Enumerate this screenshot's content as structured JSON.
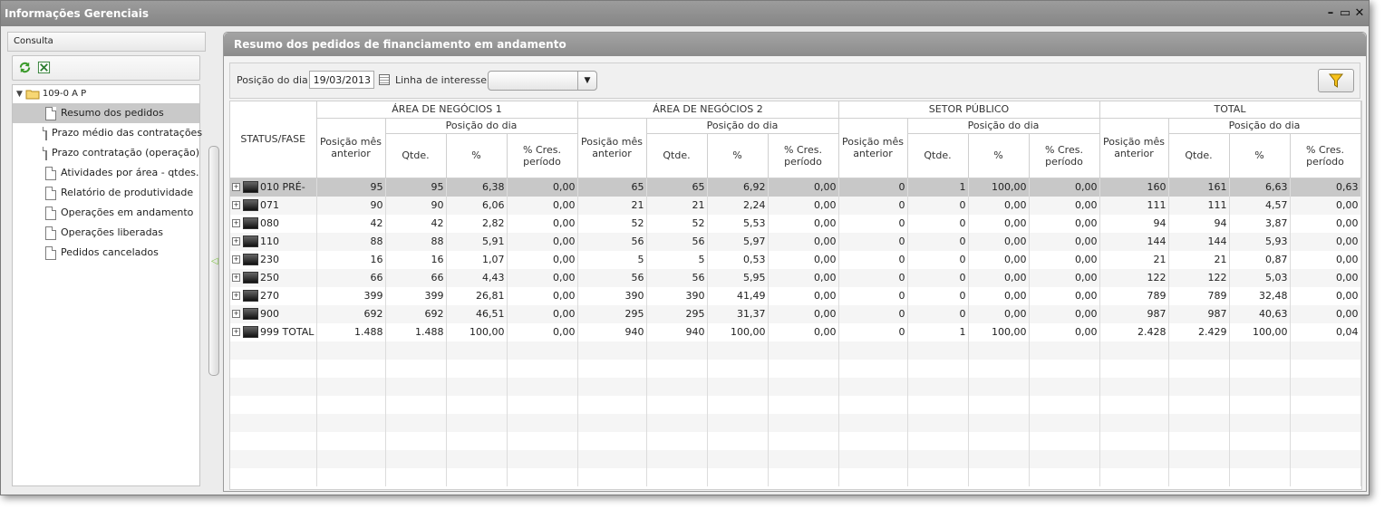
{
  "window": {
    "title": "Informações Gerenciais"
  },
  "left": {
    "header": "Consulta",
    "root": "109-0 A P",
    "items": [
      {
        "label": "Resumo dos pedidos",
        "selected": true
      },
      {
        "label": "Prazo médio das contratações"
      },
      {
        "label": "Prazo contratação (operação)"
      },
      {
        "label": "Atividades por área - qtdes."
      },
      {
        "label": "Relatório de produtividade"
      },
      {
        "label": "Operações em andamento"
      },
      {
        "label": "Operações liberadas"
      },
      {
        "label": "Pedidos cancelados"
      }
    ]
  },
  "main": {
    "title": "Resumo dos pedidos de financiamento em andamento",
    "filters": {
      "date_label": "Posição do dia:",
      "date_value": "19/03/2013",
      "interest_label": "Linha de interesse:",
      "interest_value": ""
    },
    "table": {
      "status_header": "STATUS/FASE",
      "groups": [
        "ÁREA DE NEGÓCIOS 1",
        "ÁREA DE NEGÓCIOS 2",
        "SETOR PÚBLICO",
        "TOTAL"
      ],
      "sub_group": "Posição do dia",
      "col_prev": "Posição mês anterior",
      "col_qtde": "Qtde.",
      "col_pct": "%",
      "col_cres": "% Cres. período",
      "rows": [
        {
          "status": "010 PRÉ-",
          "v": [
            "95",
            "95",
            "6,38",
            "0,00",
            "65",
            "65",
            "6,92",
            "0,00",
            "0",
            "1",
            "100,00",
            "0,00",
            "160",
            "161",
            "6,63",
            "0,63"
          ]
        },
        {
          "status": "071",
          "v": [
            "90",
            "90",
            "6,06",
            "0,00",
            "21",
            "21",
            "2,24",
            "0,00",
            "0",
            "0",
            "0,00",
            "0,00",
            "111",
            "111",
            "4,57",
            "0,00"
          ]
        },
        {
          "status": "080",
          "v": [
            "42",
            "42",
            "2,82",
            "0,00",
            "52",
            "52",
            "5,53",
            "0,00",
            "0",
            "0",
            "0,00",
            "0,00",
            "94",
            "94",
            "3,87",
            "0,00"
          ]
        },
        {
          "status": "110",
          "v": [
            "88",
            "88",
            "5,91",
            "0,00",
            "56",
            "56",
            "5,97",
            "0,00",
            "0",
            "0",
            "0,00",
            "0,00",
            "144",
            "144",
            "5,93",
            "0,00"
          ]
        },
        {
          "status": "230",
          "v": [
            "16",
            "16",
            "1,07",
            "0,00",
            "5",
            "5",
            "0,53",
            "0,00",
            "0",
            "0",
            "0,00",
            "0,00",
            "21",
            "21",
            "0,87",
            "0,00"
          ]
        },
        {
          "status": "250",
          "v": [
            "66",
            "66",
            "4,43",
            "0,00",
            "56",
            "56",
            "5,95",
            "0,00",
            "0",
            "0",
            "0,00",
            "0,00",
            "122",
            "122",
            "5,03",
            "0,00"
          ]
        },
        {
          "status": "270",
          "v": [
            "399",
            "399",
            "26,81",
            "0,00",
            "390",
            "390",
            "41,49",
            "0,00",
            "0",
            "0",
            "0,00",
            "0,00",
            "789",
            "789",
            "32,48",
            "0,00"
          ]
        },
        {
          "status": "900",
          "v": [
            "692",
            "692",
            "46,51",
            "0,00",
            "295",
            "295",
            "31,37",
            "0,00",
            "0",
            "0",
            "0,00",
            "0,00",
            "987",
            "987",
            "40,63",
            "0,00"
          ]
        },
        {
          "status": "999 TOTAL",
          "v": [
            "1.488",
            "1.488",
            "100,00",
            "0,00",
            "940",
            "940",
            "100,00",
            "0,00",
            "0",
            "1",
            "100,00",
            "0,00",
            "2.428",
            "2.429",
            "100,00",
            "0,04"
          ]
        }
      ]
    }
  }
}
